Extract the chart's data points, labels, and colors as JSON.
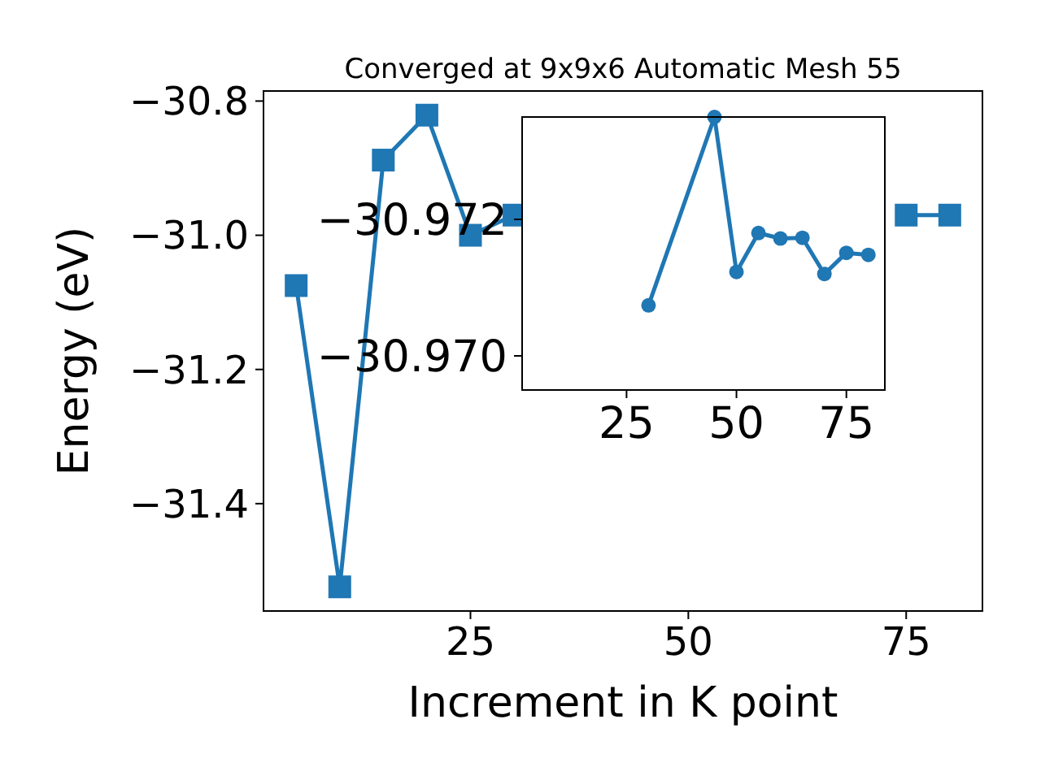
{
  "chart_data": [
    {
      "type": "line",
      "title": "Converged at 9x9x6 Automatic Mesh 55",
      "xlabel": "Increment in K point",
      "ylabel": "Energy (eV)",
      "x": [
        5,
        10,
        15,
        20,
        25,
        30,
        45,
        50,
        55,
        60,
        65,
        70,
        75,
        80
      ],
      "series": [
        {
          "color": "#1f77b4",
          "values": [
            -31.075,
            -31.524,
            -30.888,
            -30.821,
            -31.0,
            -30.97,
            null,
            null,
            null,
            null,
            null,
            null,
            -30.97,
            -30.97
          ]
        }
      ],
      "xlim": [
        1.25,
        83.75
      ],
      "xticks": [
        25,
        50,
        75
      ],
      "ylim": [
        -31.56,
        -30.785
      ],
      "yticks": [
        {
          "value": -31.4,
          "label": "−31.4"
        },
        {
          "value": -31.2,
          "label": "−31.2"
        },
        {
          "value": -31.0,
          "label": "−31.0"
        },
        {
          "value": -30.8,
          "label": "−30.8"
        }
      ],
      "marker": "square"
    },
    {
      "type": "line",
      "x": [
        30,
        45,
        50,
        55,
        60,
        65,
        70,
        75,
        80
      ],
      "series": [
        {
          "color": "#1f77b4",
          "values": [
            -30.97074,
            -30.9735,
            -30.97123,
            -30.9718,
            -30.97172,
            -30.97173,
            -30.9712,
            -30.97151,
            -30.97148
          ]
        }
      ],
      "xlim": [
        1.25,
        83.75
      ],
      "xticks": [
        25,
        50,
        75
      ],
      "ylim": [
        -30.9695,
        -30.9735
      ],
      "yticks": [
        {
          "value": -30.972,
          "label": "−30.972"
        },
        {
          "value": -30.97,
          "label": "−30.970"
        }
      ],
      "marker": "circle"
    }
  ]
}
